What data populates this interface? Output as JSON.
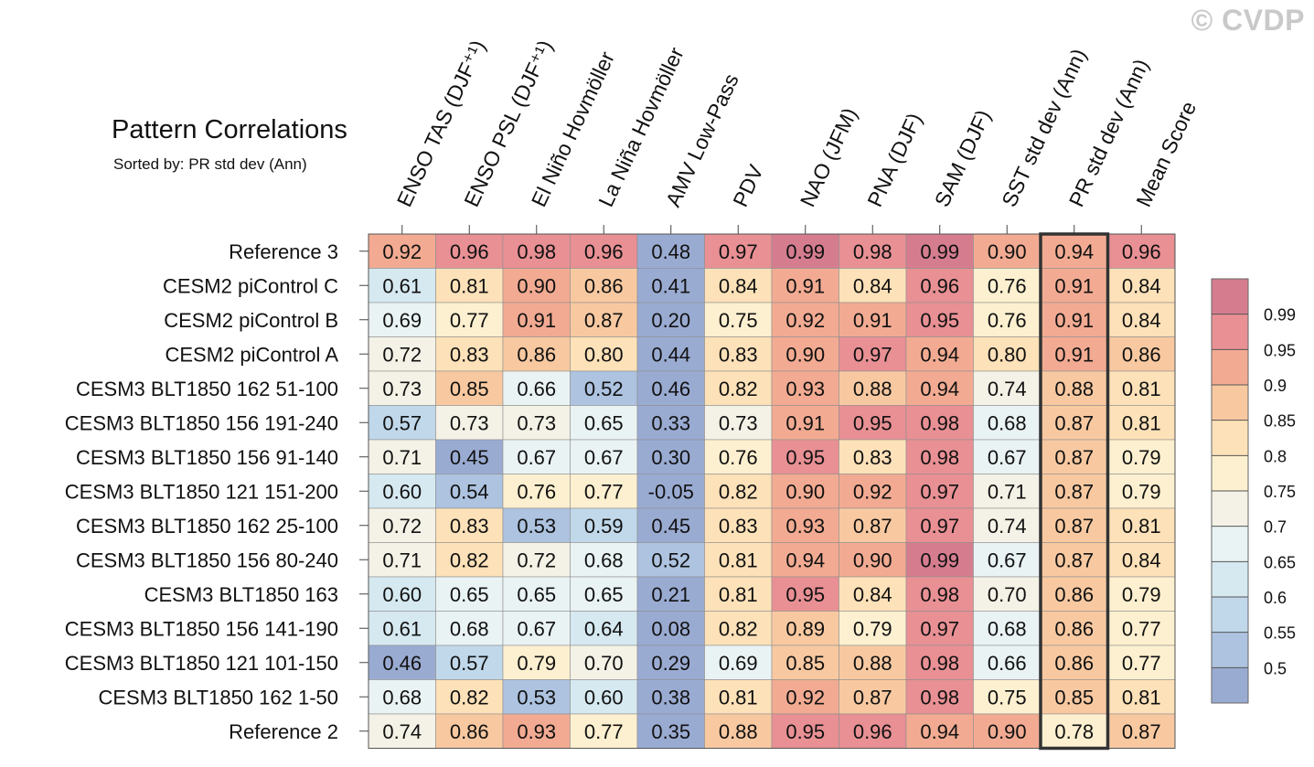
{
  "watermark": "© CVDP",
  "chart_data": {
    "type": "heatmap",
    "title": "Pattern Correlations",
    "subtitle": "Sorted by: PR std dev (Ann)",
    "columns": [
      "ENSO TAS (DJF⁺¹)",
      "ENSO PSL (DJF⁺¹)",
      "El Niño Hovmöller",
      "La Niña Hovmöller",
      "AMV Low-Pass",
      "PDV",
      "NAO (JFM)",
      "PNA (DJF)",
      "SAM (DJF)",
      "SST std dev (Ann)",
      "PR std dev (Ann)",
      "Mean Score"
    ],
    "rows": [
      {
        "label": "Reference 3",
        "values": [
          0.92,
          0.96,
          0.98,
          0.96,
          0.48,
          0.97,
          0.99,
          0.98,
          0.99,
          0.9,
          0.94,
          0.96
        ]
      },
      {
        "label": "CESM2 piControl C",
        "values": [
          0.61,
          0.81,
          0.9,
          0.86,
          0.41,
          0.84,
          0.91,
          0.84,
          0.96,
          0.76,
          0.91,
          0.84
        ]
      },
      {
        "label": "CESM2 piControl B",
        "values": [
          0.69,
          0.77,
          0.91,
          0.87,
          0.2,
          0.75,
          0.92,
          0.91,
          0.95,
          0.76,
          0.91,
          0.84
        ]
      },
      {
        "label": "CESM2 piControl A",
        "values": [
          0.72,
          0.83,
          0.86,
          0.8,
          0.44,
          0.83,
          0.9,
          0.97,
          0.94,
          0.8,
          0.91,
          0.86
        ]
      },
      {
        "label": "CESM3 BLT1850 162 51-100",
        "values": [
          0.73,
          0.85,
          0.66,
          0.52,
          0.46,
          0.82,
          0.93,
          0.88,
          0.94,
          0.74,
          0.88,
          0.81
        ]
      },
      {
        "label": "CESM3 BLT1850 156 191-240",
        "values": [
          0.57,
          0.73,
          0.73,
          0.65,
          0.33,
          0.73,
          0.91,
          0.95,
          0.98,
          0.68,
          0.87,
          0.81
        ]
      },
      {
        "label": "CESM3 BLT1850 156 91-140",
        "values": [
          0.71,
          0.45,
          0.67,
          0.67,
          0.3,
          0.76,
          0.95,
          0.83,
          0.98,
          0.67,
          0.87,
          0.79
        ]
      },
      {
        "label": "CESM3 BLT1850 121 151-200",
        "values": [
          0.6,
          0.54,
          0.76,
          0.77,
          -0.05,
          0.82,
          0.9,
          0.92,
          0.97,
          0.71,
          0.87,
          0.79
        ]
      },
      {
        "label": "CESM3 BLT1850 162 25-100",
        "values": [
          0.72,
          0.83,
          0.53,
          0.59,
          0.45,
          0.83,
          0.93,
          0.87,
          0.97,
          0.74,
          0.87,
          0.81
        ]
      },
      {
        "label": "CESM3 BLT1850 156 80-240",
        "values": [
          0.71,
          0.82,
          0.72,
          0.68,
          0.52,
          0.81,
          0.94,
          0.9,
          0.99,
          0.67,
          0.87,
          0.84
        ]
      },
      {
        "label": "CESM3 BLT1850 163",
        "values": [
          0.6,
          0.65,
          0.65,
          0.65,
          0.21,
          0.81,
          0.95,
          0.84,
          0.98,
          0.7,
          0.86,
          0.79
        ]
      },
      {
        "label": "CESM3 BLT1850 156 141-190",
        "values": [
          0.61,
          0.68,
          0.67,
          0.64,
          0.08,
          0.82,
          0.89,
          0.79,
          0.97,
          0.68,
          0.86,
          0.77
        ]
      },
      {
        "label": "CESM3 BLT1850 121 101-150",
        "values": [
          0.46,
          0.57,
          0.79,
          0.7,
          0.29,
          0.69,
          0.85,
          0.88,
          0.98,
          0.66,
          0.86,
          0.77
        ]
      },
      {
        "label": "CESM3 BLT1850 162 1-50",
        "values": [
          0.68,
          0.82,
          0.53,
          0.6,
          0.38,
          0.81,
          0.92,
          0.87,
          0.98,
          0.75,
          0.85,
          0.81
        ]
      },
      {
        "label": "Reference 2",
        "values": [
          0.74,
          0.86,
          0.93,
          0.77,
          0.35,
          0.88,
          0.95,
          0.96,
          0.94,
          0.9,
          0.78,
          0.87
        ]
      }
    ],
    "highlighted_column": "PR std dev (Ann)",
    "colorbar": {
      "levels": [
        "0.5",
        "0.55",
        "0.6",
        "0.65",
        "0.7",
        "0.75",
        "0.8",
        "0.85",
        "0.9",
        "0.95",
        "0.99"
      ],
      "colors": [
        "#9aabd2",
        "#adc3e0",
        "#c0d8ea",
        "#d6e9f1",
        "#eaf3f4",
        "#f4f2e6",
        "#fdf0d0",
        "#fde1b8",
        "#f8c9a1",
        "#f2ab92",
        "#e89094",
        "#d57d8f"
      ]
    }
  }
}
